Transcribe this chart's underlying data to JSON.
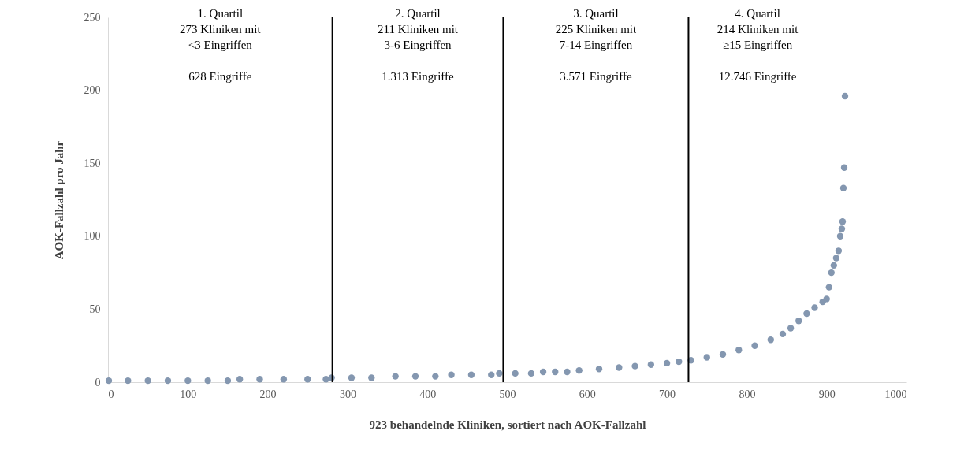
{
  "chart_data": {
    "type": "scatter",
    "xlabel": "923 behandelnde Kliniken, sortiert nach AOK-Fallzahl",
    "ylabel": "AOK-Fallzahl pro Jahr",
    "x": [
      1,
      25,
      50,
      75,
      100,
      125,
      150,
      165,
      190,
      220,
      250,
      273,
      280,
      305,
      330,
      360,
      385,
      410,
      430,
      455,
      480,
      490,
      510,
      530,
      545,
      560,
      575,
      590,
      615,
      640,
      660,
      680,
      700,
      715,
      730,
      750,
      770,
      790,
      810,
      830,
      845,
      855,
      865,
      875,
      885,
      895,
      900,
      903,
      906,
      909,
      912,
      915,
      917,
      919,
      920,
      921,
      922,
      923
    ],
    "series": [
      {
        "color": "#8497b0",
        "values": [
          1,
          1,
          1,
          1,
          1,
          1,
          1,
          2,
          2,
          2,
          2,
          2,
          3,
          3,
          3,
          4,
          4,
          4,
          5,
          5,
          5,
          6,
          6,
          6,
          7,
          7,
          7,
          8,
          9,
          10,
          11,
          12,
          13,
          14,
          15,
          17,
          19,
          22,
          25,
          29,
          33,
          37,
          42,
          47,
          51,
          55,
          57,
          65,
          75,
          80,
          85,
          90,
          100,
          105,
          110,
          133,
          147,
          196
        ]
      }
    ],
    "marker": "circle",
    "xlim": [
      0,
      1000
    ],
    "ylim": [
      0,
      250
    ],
    "xticks": [
      0,
      100,
      200,
      300,
      400,
      500,
      600,
      700,
      800,
      900,
      {
        "value": 1000,
        "label": "1000"
      }
    ],
    "yticks": [
      0,
      50,
      100,
      150,
      200,
      250
    ],
    "grid": false,
    "legend": false,
    "ref_lines": [
      {
        "axis": "x",
        "value": 281,
        "color": "#000000"
      },
      {
        "axis": "x",
        "value": 495,
        "color": "#000000"
      },
      {
        "axis": "x",
        "value": 727,
        "color": "#000000"
      }
    ],
    "annotations": [
      "1. Quartil\n273 Kliniken mit\n<3 Eingriffen\n\n628 Eingriffe",
      "2. Quartil\n211 Kliniken mit\n3-6 Eingriffen\n\n1.313 Eingriffe",
      "3. Quartil\n225 Kliniken mit\n7-14 Eingriffen\n\n3.571 Eingriffe",
      "4. Quartil\n214 Kliniken mit\n≥15 Eingriffen\n\n12.746 Eingriffe"
    ]
  }
}
